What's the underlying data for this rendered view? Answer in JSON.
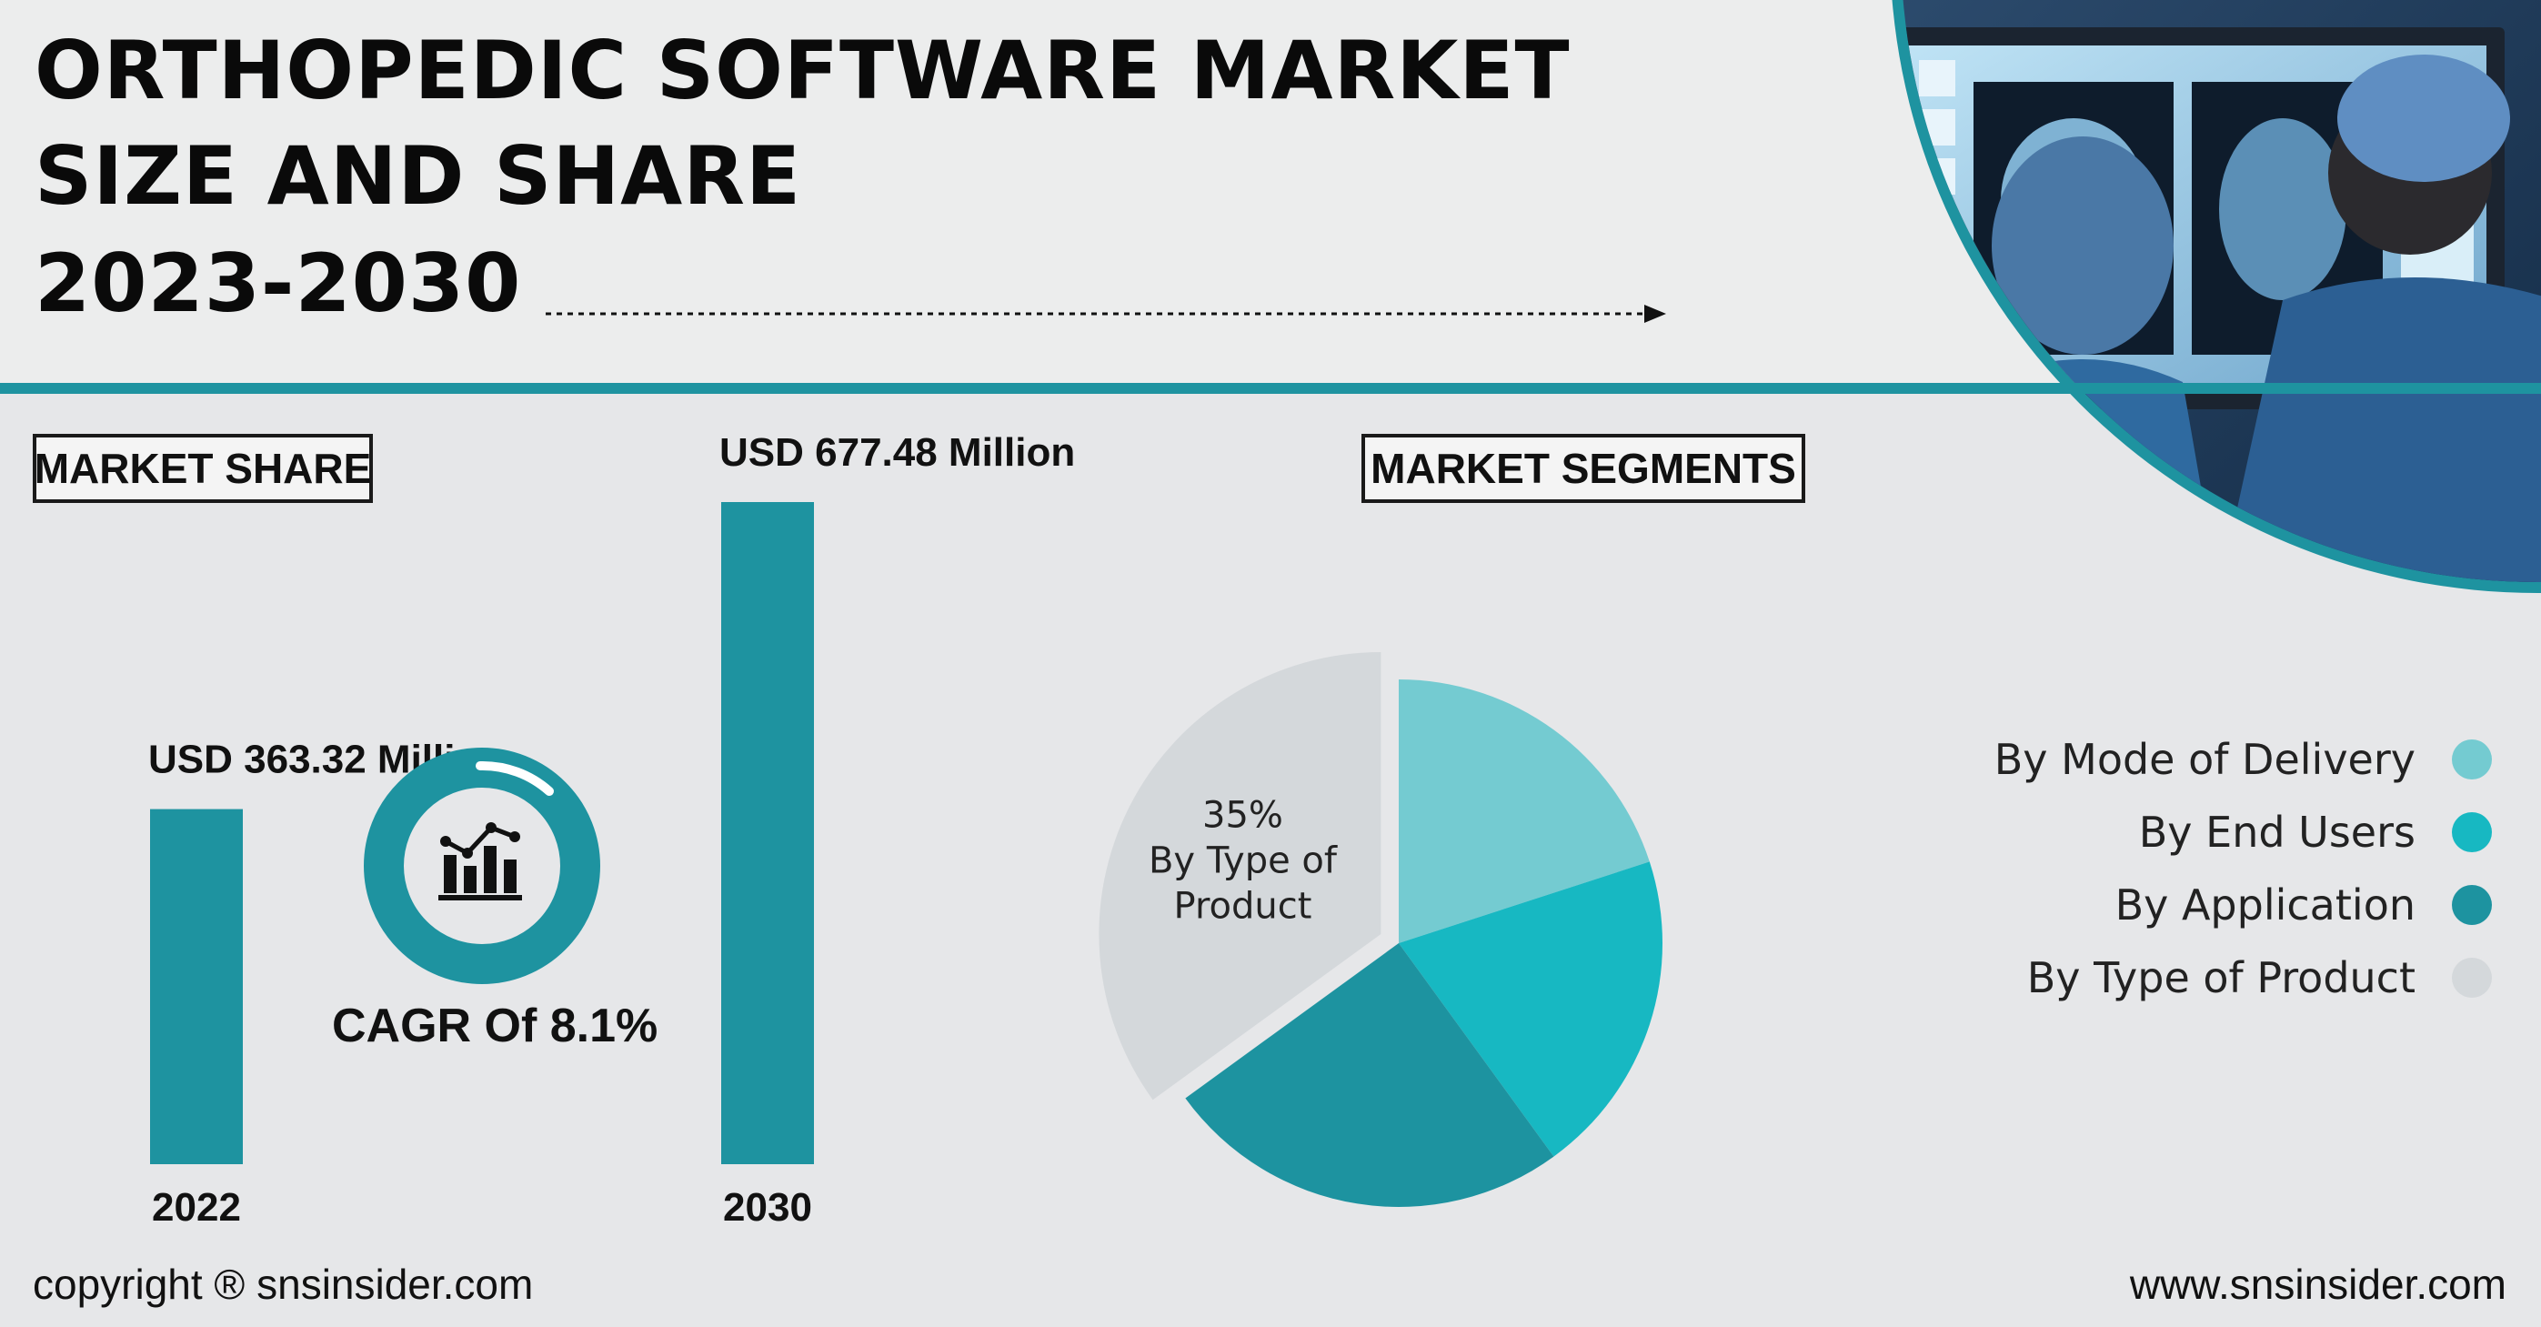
{
  "title": {
    "line1": "ORTHOPEDIC SOFTWARE MARKET",
    "line2": "SIZE AND SHARE",
    "line3": "2023-2030"
  },
  "labels": {
    "market_share": "MARKET SHARE",
    "market_segments": "MARKET SEGMENTS",
    "cagr": "CAGR Of 8.1%"
  },
  "footer": {
    "copyright": "copyright ® snsinsider.com",
    "website": "www.snsinsider.com"
  },
  "colors": {
    "teal_dark": "#1e93a0",
    "teal_light": "#74cbd1",
    "teal_bright": "#17b8c2",
    "teal_mid": "#1d93a0",
    "gray_slice": "#d4d8db",
    "background": "#e6e7e9"
  },
  "icons": {
    "cagr_badge": "growth-chart-icon"
  },
  "chart_data": [
    {
      "type": "bar",
      "title": "",
      "categories": [
        "2022",
        "2030"
      ],
      "values": [
        363.32,
        677.48
      ],
      "value_labels": [
        "USD 363.32 Million",
        "USD 677.48 Million"
      ],
      "unit": "USD Million",
      "ylim": [
        0,
        677.48
      ],
      "grid": false,
      "color": "#1e93a0"
    },
    {
      "type": "pie",
      "title": "",
      "categories": [
        "By Mode of Delivery",
        "By End Users",
        "By Application",
        "By Type of Product"
      ],
      "values": [
        20,
        20,
        25,
        35
      ],
      "colors": [
        "#74cbd1",
        "#17b8c2",
        "#1d93a0",
        "#d4d8db"
      ],
      "slice_label": {
        "category": "By Type of Product",
        "percent": "35%",
        "text_lines": [
          "By Type of",
          "Product"
        ]
      },
      "exploded": "By Type of Product",
      "legend_position": "right"
    }
  ]
}
